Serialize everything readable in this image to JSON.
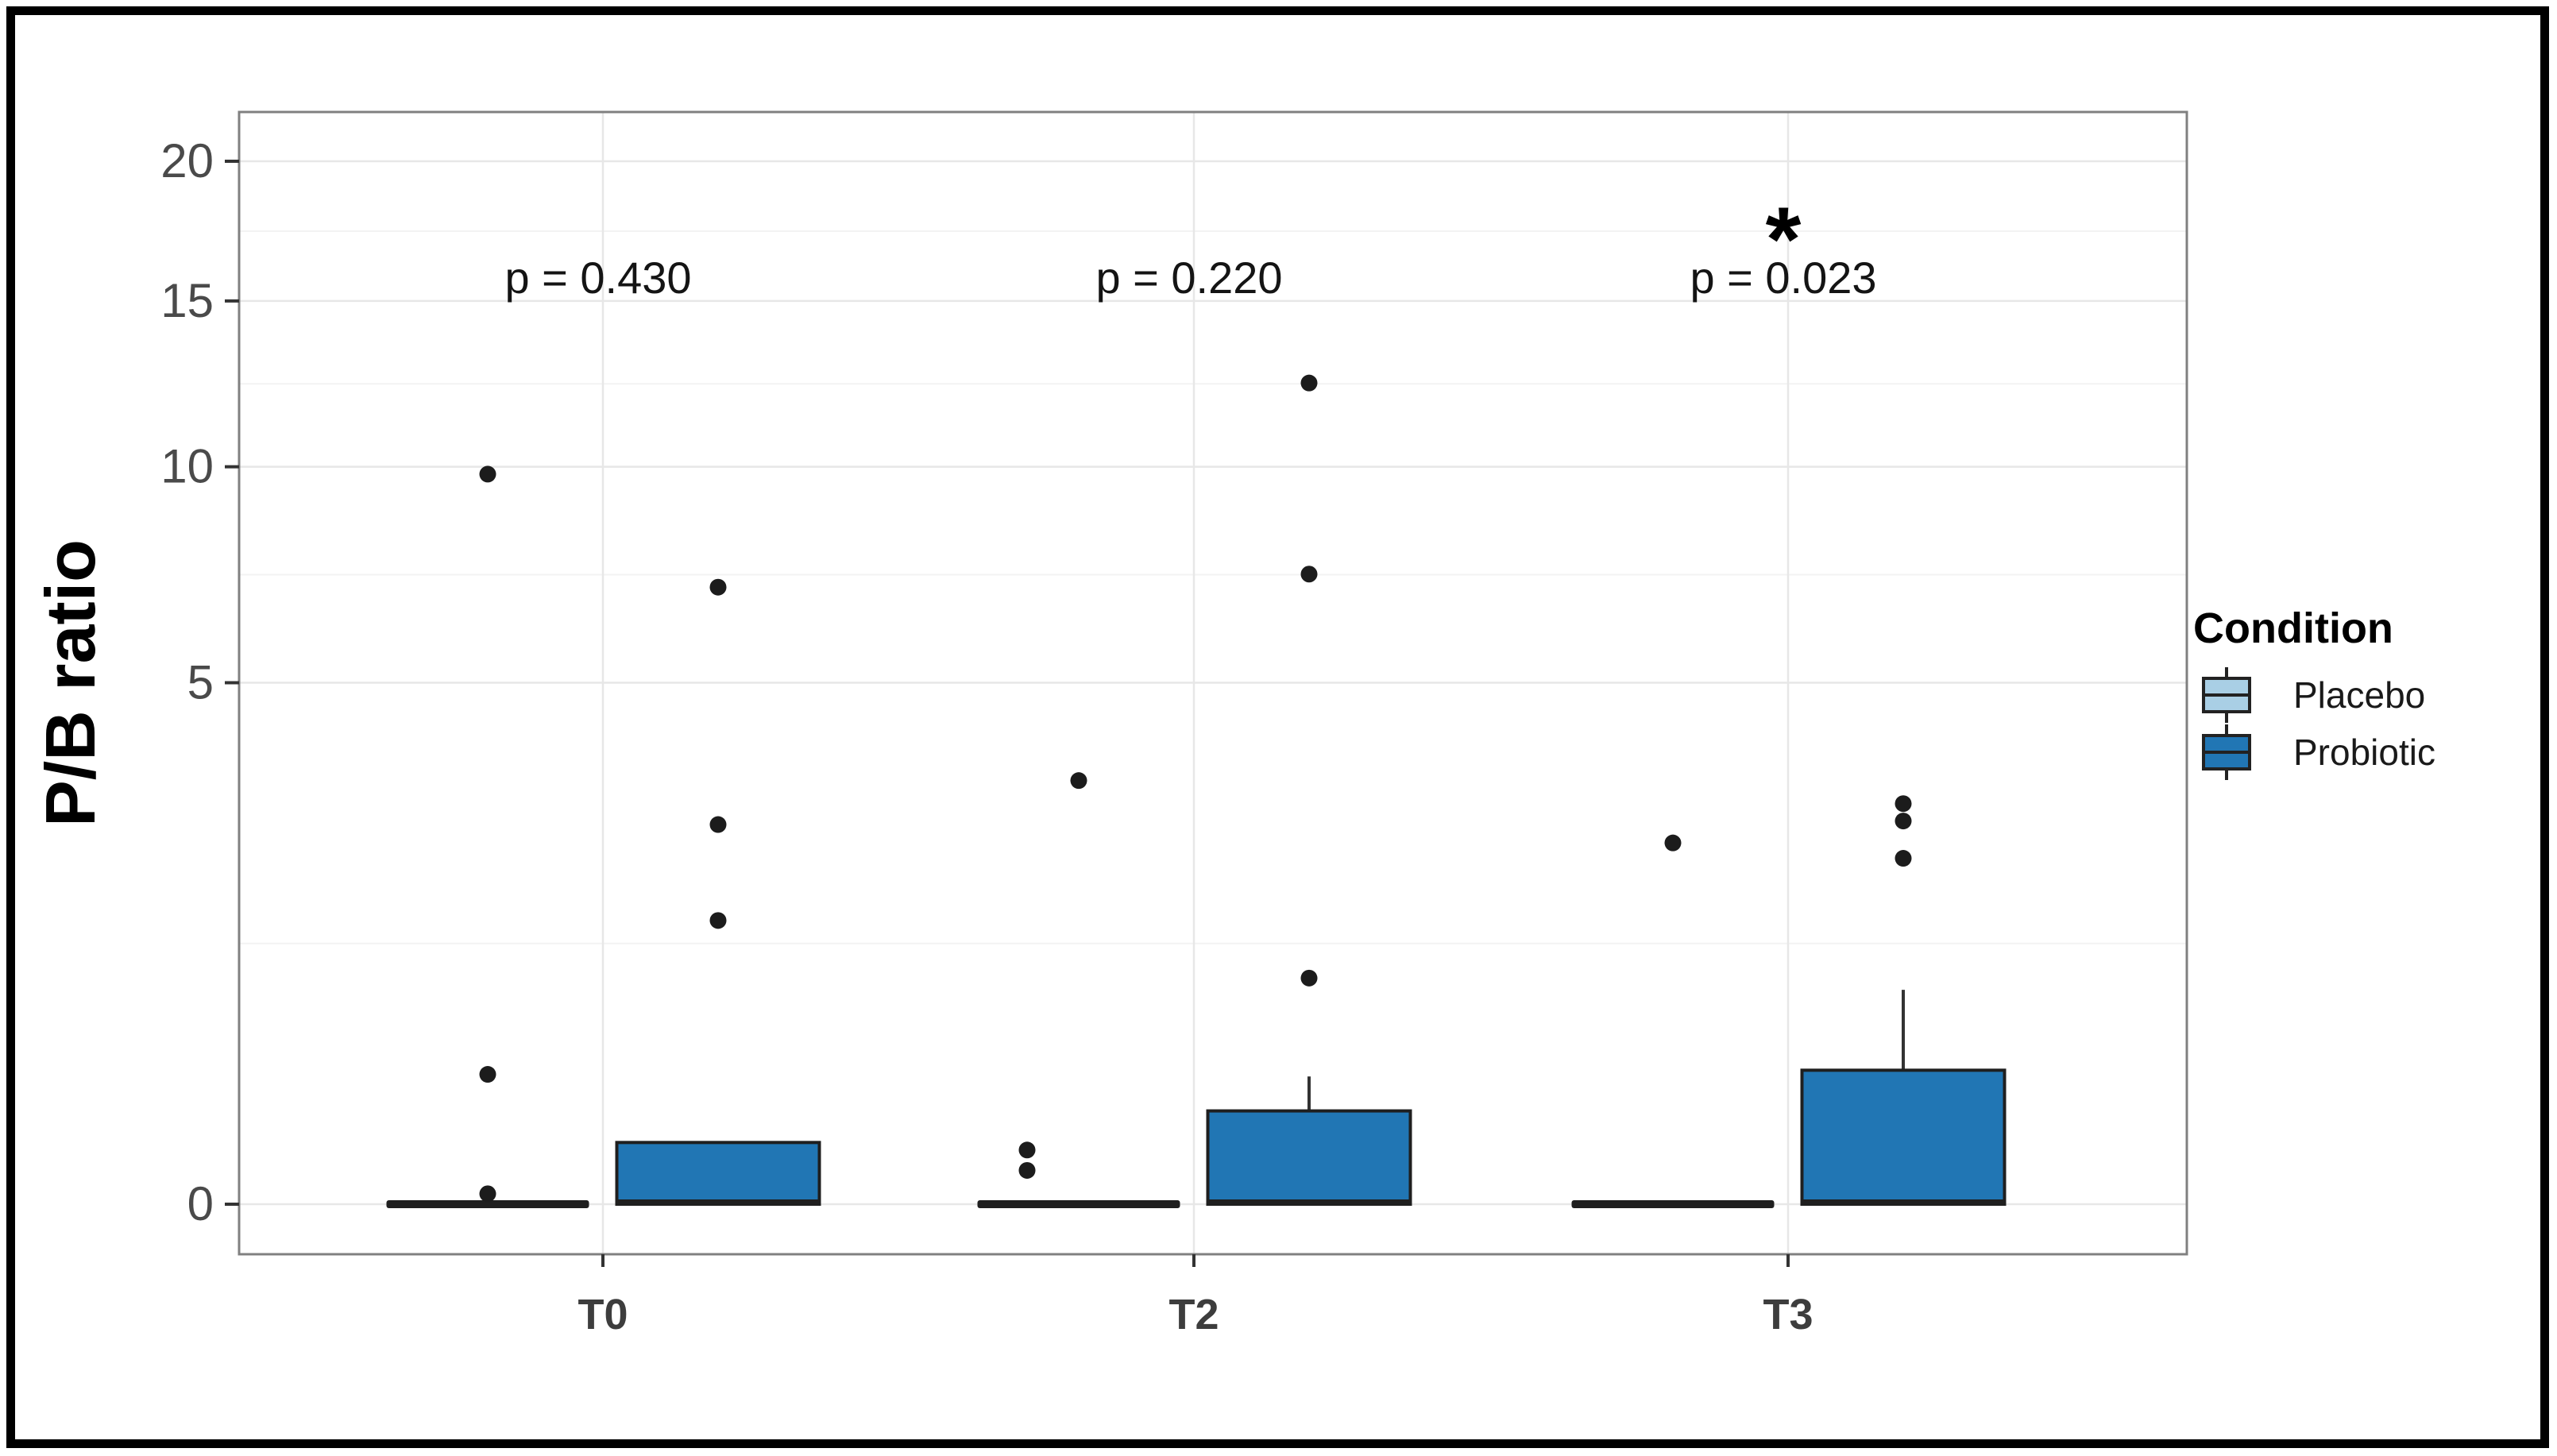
{
  "chart_data": {
    "type": "boxplot",
    "title": "",
    "xlabel": "",
    "ylabel": "P/B ratio",
    "y_scale": "sqrt",
    "y_ticks": [
      0,
      5,
      10,
      15,
      20
    ],
    "ylim": [
      0,
      21.5
    ],
    "grid": "major and minor horizontal, major vertical at category centers",
    "categories": [
      "T0",
      "T2",
      "T3"
    ],
    "legend": {
      "title": "Condition",
      "position": "right",
      "items": [
        {
          "label": "Placebo",
          "color": "#A9CFE5"
        },
        {
          "label": "Probiotic",
          "color": "#2176B4"
        }
      ]
    },
    "annotations": [
      {
        "category": "T0",
        "text": "p = 0.430",
        "star": ""
      },
      {
        "category": "T2",
        "text": "p = 0.220",
        "star": ""
      },
      {
        "category": "T3",
        "text": "p = 0.023",
        "star": "*"
      }
    ],
    "series": [
      {
        "name": "Placebo",
        "fill": "#A9CFE5",
        "collapsed_at_zero": true,
        "boxes": [
          {
            "category": "T0",
            "median": 0,
            "q1": 0,
            "q3": 0,
            "whisker_low": 0,
            "whisker_high": 0,
            "outliers": [
              {
                "v": 0.002,
                "dx": 0
              },
              {
                "v": 0.31,
                "dx": 0
              },
              {
                "v": 9.8,
                "dx": 0
              }
            ]
          },
          {
            "category": "T2",
            "median": 0,
            "q1": 0,
            "q3": 0,
            "whisker_low": 0,
            "whisker_high": 0,
            "outliers": [
              {
                "v": 0.021,
                "dx": -65
              },
              {
                "v": 0.054,
                "dx": -65
              },
              {
                "v": 3.3,
                "dx": 0
              }
            ]
          },
          {
            "category": "T3",
            "median": 0,
            "q1": 0,
            "q3": 0,
            "whisker_low": 0,
            "whisker_high": 0,
            "outliers": [
              {
                "v": 2.4,
                "dx": 0
              }
            ]
          }
        ]
      },
      {
        "name": "Probiotic",
        "fill": "#2176B4",
        "collapsed_at_zero": false,
        "boxes": [
          {
            "category": "T0",
            "median": 0,
            "q1": 0,
            "q3": 0.07,
            "whisker_low": 0,
            "whisker_high": 0.07,
            "outliers": [
              {
                "v": 1.48,
                "dx": 0
              },
              {
                "v": 2.65,
                "dx": 0
              },
              {
                "v": 7.0,
                "dx": 0
              }
            ]
          },
          {
            "category": "T2",
            "median": 0,
            "q1": 0,
            "q3": 0.16,
            "whisker_low": 0,
            "whisker_high": 0.3,
            "outliers": [
              {
                "v": 0.94,
                "dx": 0
              },
              {
                "v": 7.3,
                "dx": 0
              },
              {
                "v": 12.4,
                "dx": 0
              }
            ]
          },
          {
            "category": "T3",
            "median": 0,
            "q1": 0,
            "q3": 0.33,
            "whisker_low": 0,
            "whisker_high": 0.845,
            "outliers": [
              {
                "v": 2.2,
                "dx": 0
              },
              {
                "v": 2.7,
                "dx": 0
              },
              {
                "v": 2.95,
                "dx": 0
              }
            ]
          }
        ]
      }
    ],
    "colors": {
      "box_border": "#1F1F1F",
      "outlier_dot": "#1C1C1C",
      "grid_major": "#E7E7E7",
      "grid_minor": "#F3F3F3",
      "panel_border": "#808080",
      "tick_label": "#4A4A4A",
      "x_label": "#3D3D3D",
      "annotation_text": "#141414",
      "frame": "#000000"
    }
  }
}
